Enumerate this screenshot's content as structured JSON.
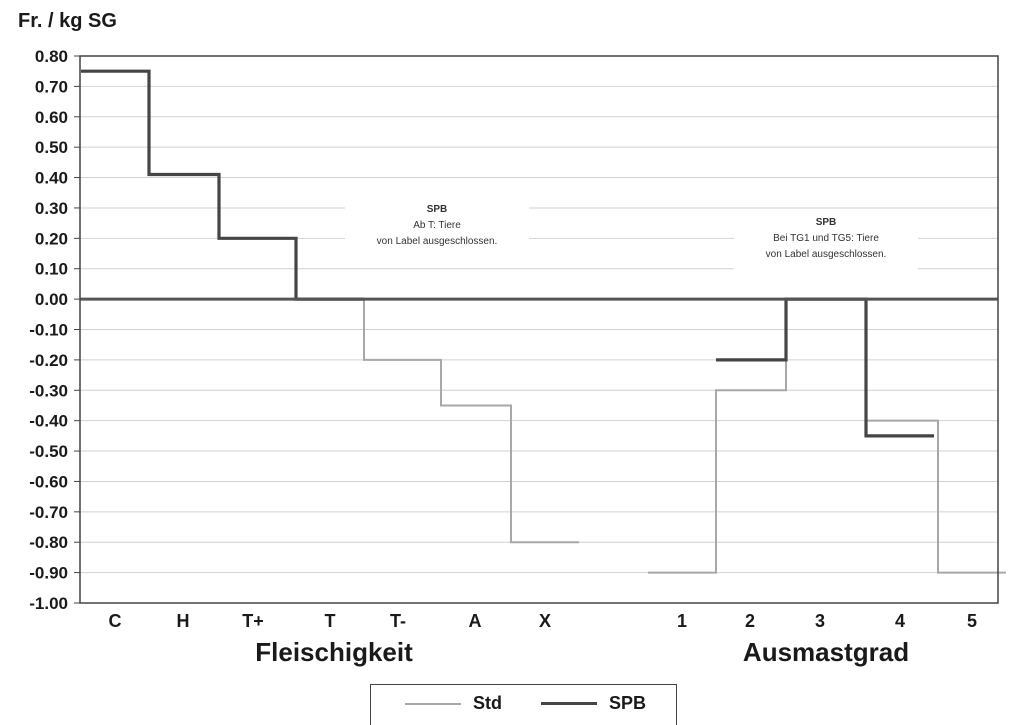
{
  "chart_data": {
    "type": "line",
    "step": true,
    "ylabel": "Fr. / kg SG",
    "ylim": [
      -1.0,
      0.8
    ],
    "yticks": [
      "0.80",
      "0.70",
      "0.60",
      "0.50",
      "0.40",
      "0.30",
      "0.20",
      "0.10",
      "0.00",
      "-0.10",
      "-0.20",
      "-0.30",
      "-0.40",
      "-0.50",
      "-0.60",
      "-0.70",
      "-0.80",
      "-0.90",
      "-1.00"
    ],
    "grid": true,
    "groups": [
      {
        "label": "Fleischigkeit",
        "categories": [
          "C",
          "H",
          "T+",
          "T",
          "T-",
          "A",
          "X"
        ],
        "series": [
          {
            "name": "Std",
            "values": [
              0.75,
              0.41,
              0.2,
              0.0,
              -0.2,
              -0.35,
              -0.8
            ]
          },
          {
            "name": "SPB",
            "values": [
              0.75,
              0.41,
              0.2,
              0.0,
              null,
              null,
              null
            ]
          }
        ],
        "annotation": [
          "SPB",
          "Ab T:  Tiere",
          "von Label ausgeschlossen."
        ]
      },
      {
        "label": "Ausmastgrad",
        "categories": [
          "1",
          "2",
          "3",
          "4",
          "5"
        ],
        "series": [
          {
            "name": "Std",
            "values": [
              -0.9,
              -0.3,
              0.0,
              -0.4,
              -0.9
            ]
          },
          {
            "name": "SPB",
            "values": [
              null,
              -0.2,
              0.0,
              -0.45,
              null
            ]
          }
        ],
        "annotation": [
          "SPB",
          "Bei TG1 und TG5: Tiere",
          "von Label ausgeschlossen."
        ]
      }
    ],
    "legend": [
      {
        "name": "Std",
        "color": "#a8a8a8"
      },
      {
        "name": "SPB",
        "color": "#454545"
      }
    ],
    "legend_position": "bottom-center"
  }
}
